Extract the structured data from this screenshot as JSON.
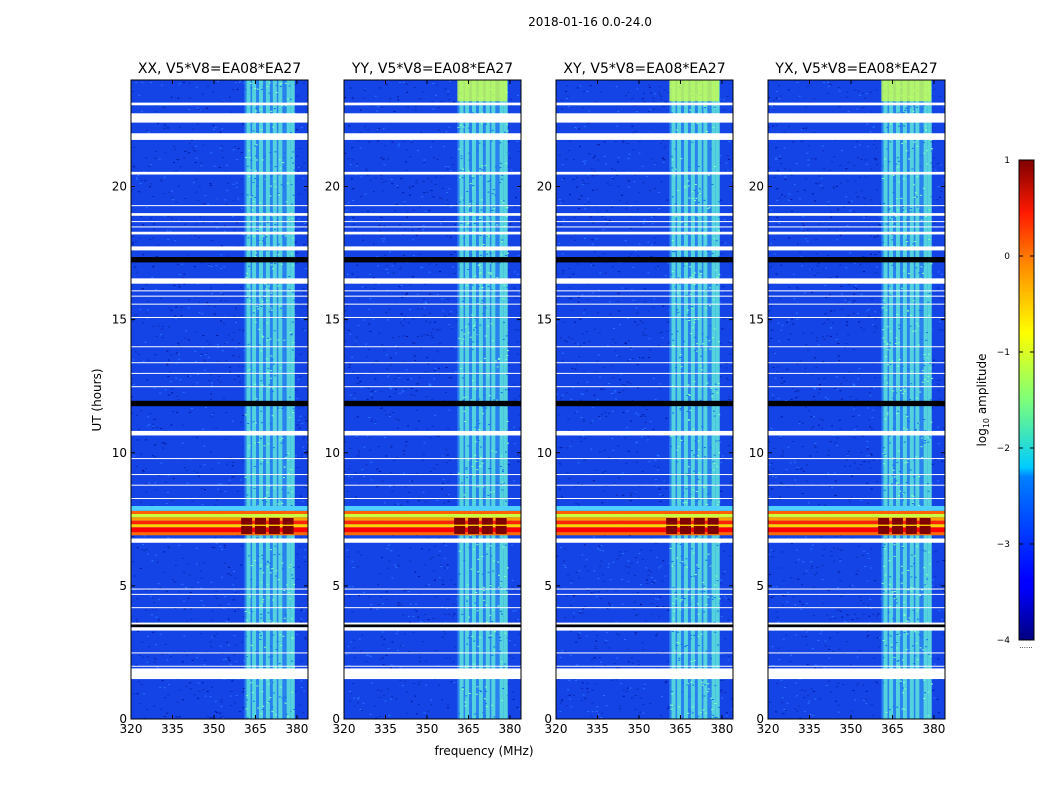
{
  "figure": {
    "suptitle": "2018-01-16 0.0-24.0"
  },
  "chart_data": {
    "type": "heatmap",
    "panels": [
      {
        "title": "XX, V5*V8=EA08*EA27",
        "pol": "XX"
      },
      {
        "title": "YY, V5*V8=EA08*EA27",
        "pol": "YY"
      },
      {
        "title": "XY, V5*V8=EA08*EA27",
        "pol": "XY"
      },
      {
        "title": "YX, V5*V8=EA08*EA27",
        "pol": "YX"
      }
    ],
    "xlabel": "frequency (MHz)",
    "ylabel": "UT (hours)",
    "xlim": [
      320,
      384
    ],
    "ylim": [
      0,
      24
    ],
    "xticks": [
      320,
      335,
      350,
      365,
      380
    ],
    "yticks": [
      0,
      5,
      10,
      15,
      20
    ],
    "colorbar": {
      "label_text": "log",
      "label_sub": "10",
      "label_rest": " amplitude",
      "range": [
        -4,
        1
      ],
      "ticks": [
        1,
        0,
        -1,
        -2,
        -3,
        -4
      ],
      "tick_labels": [
        "1",
        "0",
        "−1",
        "−2",
        "−3",
        "−4"
      ],
      "colormap": "jet",
      "footnote": "......"
    },
    "rfi_band_mhz": [
      361,
      379
    ],
    "rfi_channels_mhz": [
      362.5,
      364.5,
      367,
      369.5,
      372,
      374,
      377,
      378.5
    ],
    "flagged_white_hours": [
      [
        1.5,
        1.9
      ],
      [
        3.32,
        3.45
      ],
      [
        3.55,
        3.62
      ],
      [
        6.62,
        6.78
      ],
      [
        10.65,
        10.82
      ],
      [
        16.35,
        16.55
      ],
      [
        17.6,
        17.75
      ],
      [
        18.2,
        18.3
      ],
      [
        18.9,
        19.0
      ],
      [
        20.45,
        20.55
      ],
      [
        21.75,
        22.0
      ],
      [
        22.4,
        22.75
      ],
      [
        23.05,
        23.15
      ]
    ],
    "flagged_black_hours": [
      [
        11.75,
        11.95
      ],
      [
        17.15,
        17.35
      ],
      [
        3.45,
        3.55
      ]
    ],
    "storm_hours": [
      6.9,
      8.0
    ],
    "high_amplitude_hours": [
      [
        6.95,
        7.25
      ],
      [
        7.3,
        7.55
      ]
    ]
  }
}
